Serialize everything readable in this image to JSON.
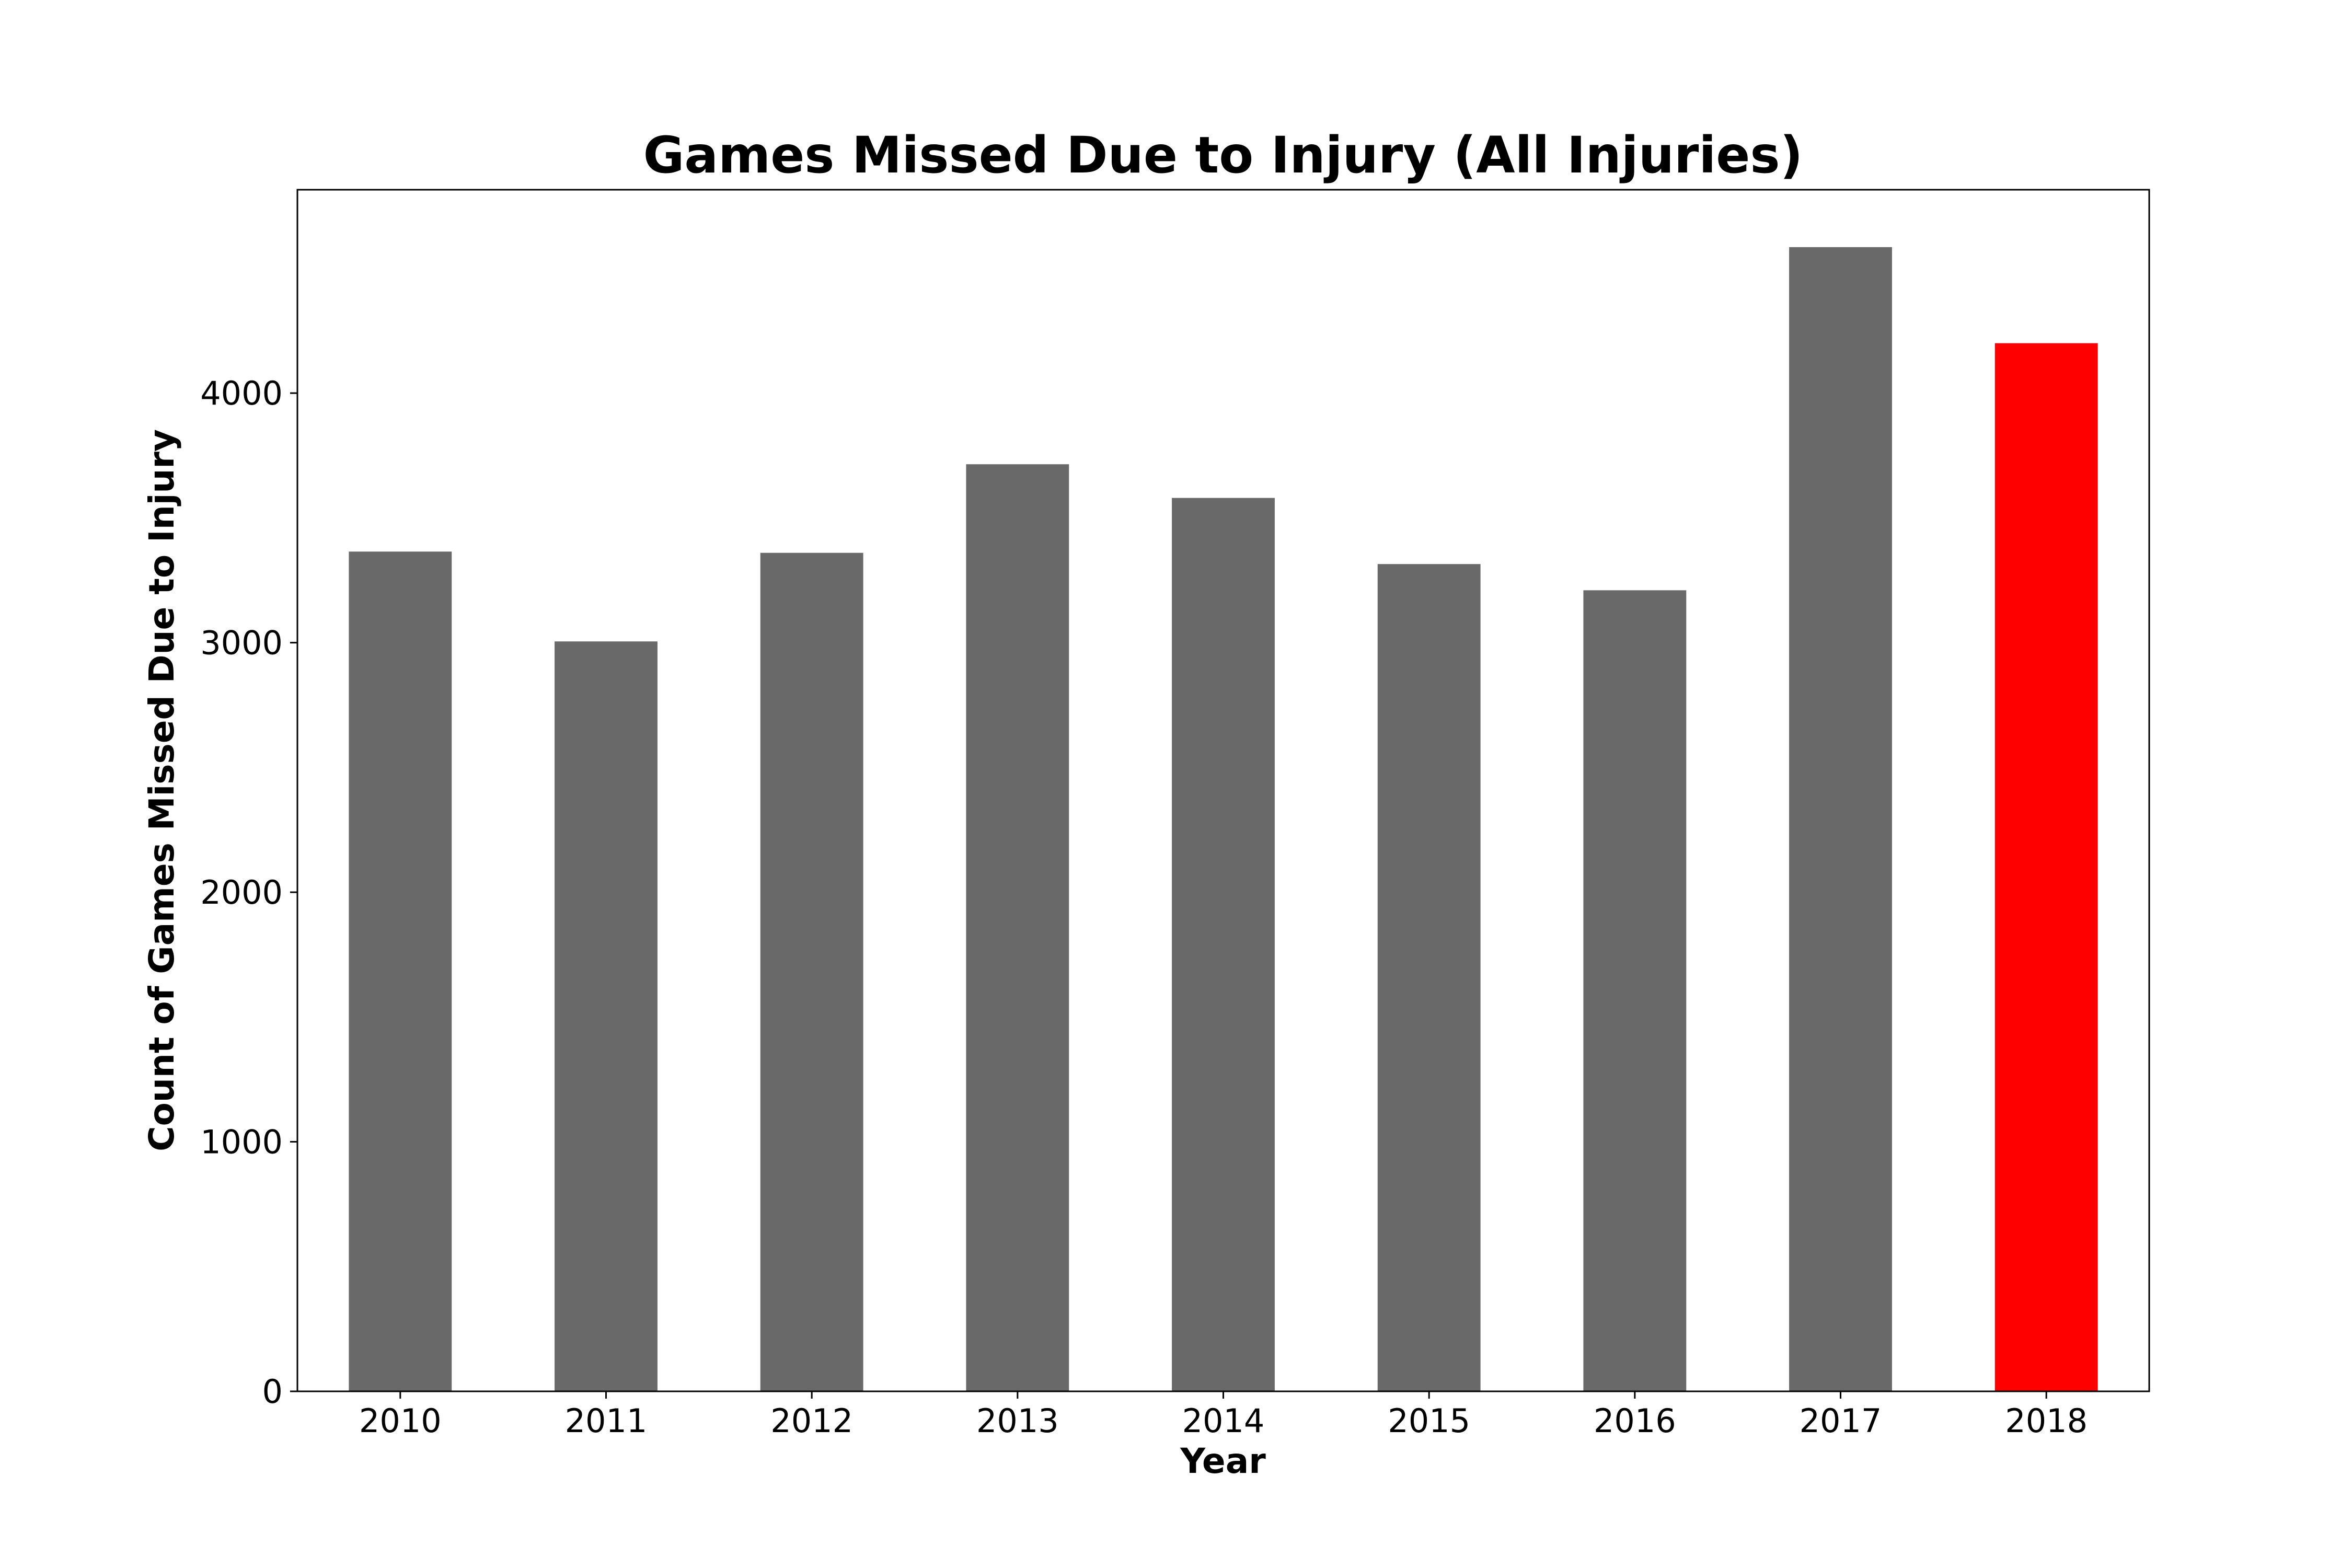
{
  "chart_data": {
    "type": "bar",
    "title": "Games Missed Due to Injury (All Injuries)",
    "xlabel": "Year",
    "ylabel": "Count of Games Missed Due to Injury",
    "categories": [
      "2010",
      "2011",
      "2012",
      "2013",
      "2014",
      "2015",
      "2016",
      "2017",
      "2018"
    ],
    "values": [
      3365,
      3005,
      3360,
      3715,
      3580,
      3315,
      3210,
      4585,
      4200
    ],
    "colors": [
      "#696969",
      "#696969",
      "#696969",
      "#696969",
      "#696969",
      "#696969",
      "#696969",
      "#696969",
      "#ff0000"
    ],
    "yticks": [
      0,
      1000,
      2000,
      3000,
      4000
    ],
    "ytick_labels": [
      "0",
      "1000",
      "2000",
      "3000",
      "4000"
    ],
    "ylim": [
      0,
      4815
    ],
    "grid": false,
    "legend": "none"
  }
}
